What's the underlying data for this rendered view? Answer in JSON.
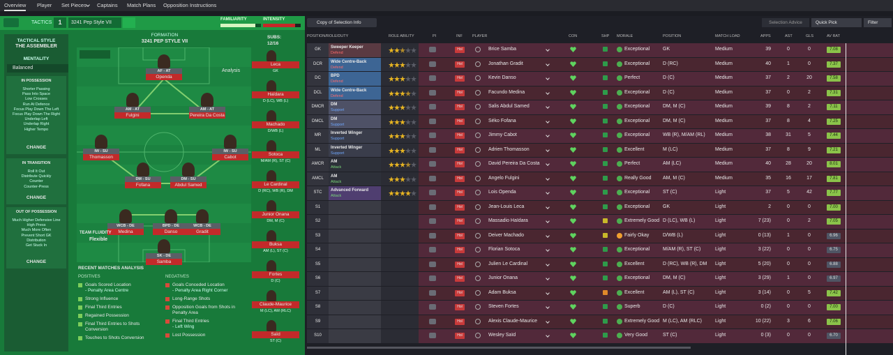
{
  "tabs": [
    "Overview",
    "Player",
    "Set Pieces",
    "Captains",
    "Match Plans",
    "Opposition Instructions"
  ],
  "tactic": {
    "label": "TACTICS",
    "number": "1",
    "name": "3241 Pep Style VII",
    "familiarity": "FAMILIARITY",
    "intensity": "INTENSITY"
  },
  "style": {
    "heading": "TACTICAL STYLE",
    "name": "THE ASSEMBLER",
    "mentality_label": "MENTALITY",
    "mentality": "Balanced"
  },
  "instructions": [
    {
      "title": "IN POSSESSION",
      "items": [
        "Shorter Passing",
        "Pass Into Space",
        "Low Crosses",
        "Run At Defence",
        "Focus Play Down The Left",
        "Focus Play Down The Right",
        "Underlap Left",
        "Underlap Right",
        "Higher Tempo"
      ],
      "change": "CHANGE"
    },
    {
      "title": "IN TRANSITION",
      "items": [
        "Roll It Out",
        "Distribute Quickly",
        "Counter",
        "Counter-Press"
      ],
      "change": "CHANGE"
    },
    {
      "title": "OUT OF POSSESSION",
      "items": [
        "Much Higher Defensive Line",
        "High Press",
        "Much More Often",
        "Prevent Short GK",
        "Distribution",
        "Get Stuck In"
      ],
      "change": "CHANGE"
    }
  ],
  "formation": {
    "label": "FORMATION",
    "name": "3241 PEP STYLE VII",
    "analysis": "Analysis",
    "subs_label": "SUBS:",
    "subs": "12/16",
    "fluidity_label": "TEAM FLUIDITY",
    "fluidity": "Flexible"
  },
  "pitch": [
    {
      "role": "AF - AT",
      "name": "Openda"
    },
    {
      "role": "AM - AT",
      "name": "Fulgini"
    },
    {
      "role": "AM - AT",
      "name": "Pereira Da Costa"
    },
    {
      "role": "IW - SU",
      "name": "Thomasson"
    },
    {
      "role": "IW - SU",
      "name": "Cabot"
    },
    {
      "role": "DM - SU",
      "name": "Fofana"
    },
    {
      "role": "DM - SU",
      "name": "Abdul Samed"
    },
    {
      "role": "WCB - DE",
      "name": "Medina"
    },
    {
      "role": "BPD - DE",
      "name": "Danso"
    },
    {
      "role": "WCB - DE",
      "name": "Gradit"
    },
    {
      "role": "SK - DE",
      "name": "Samba"
    }
  ],
  "subs": [
    {
      "name": "Leca",
      "pos": "GK"
    },
    {
      "name": "Haïdara",
      "pos": "D (LC), WB (L)"
    },
    {
      "name": "Machado",
      "pos": "D/WB (L)"
    },
    {
      "name": "Sotoca",
      "pos": "M/AM (R), ST (C)"
    },
    {
      "name": "Le Cardinal",
      "pos": "D (RC), WB (R), DM"
    },
    {
      "name": "Junior Onana",
      "pos": "DM, M (C)"
    },
    {
      "name": "Buksa",
      "pos": "AM (L), ST (C)"
    },
    {
      "name": "Fortes",
      "pos": "D (C)"
    },
    {
      "name": "Claude-Maurice",
      "pos": "M (LC), AM (RLC)"
    },
    {
      "name": "Saïd",
      "pos": "ST (C)"
    }
  ],
  "analysis": {
    "title": "RECENT MATCHES ANALYSIS",
    "positives_label": "POSITIVES",
    "negatives_label": "NEGATIVES",
    "positives": [
      {
        "text": "Goals Scored Location",
        "detail": "- Penalty Area Centre"
      },
      {
        "text": "Strong Influence"
      },
      {
        "text": "Final Third Entries"
      },
      {
        "text": "Regained Possession"
      },
      {
        "text": "Final Third Entries to Shots Conversion"
      },
      {
        "text": "Touches to Shots Conversion"
      }
    ],
    "negatives": [
      {
        "text": "Goals Conceded Location",
        "detail": "- Penalty Area Right Corner"
      },
      {
        "text": "Long-Range Shots"
      },
      {
        "text": "Opposition Goals from Shots in Penalty Area"
      },
      {
        "text": "Final Third Entries",
        "detail": "- Left Wing"
      },
      {
        "text": "Lost Possession"
      }
    ]
  },
  "toolbar": {
    "view": "Copy of Selection Info",
    "advice": "Selection Advice",
    "quick_pick": "Quick Pick",
    "filter": "Filter"
  },
  "table": {
    "headers": [
      "POSITION/ROLE/DUTY",
      "ROLE ABILITY",
      "PI",
      "INF",
      "PLAYER",
      "CON",
      "SHP",
      "MORALE",
      "POSITION",
      "MATCH LOAD",
      "APPS",
      "AST",
      "GLS",
      "AV RAT"
    ],
    "rows": [
      {
        "pos": "GK",
        "role": "Sweeper Keeper",
        "duty": "Defend",
        "ability": 2.5,
        "inf": "Hol",
        "player": "Brice Samba",
        "morale": "Exceptional",
        "position": "GK",
        "load": "Medium",
        "apps": "39",
        "ast": "0",
        "gls": "0",
        "rating": "7.08"
      },
      {
        "pos": "DCR",
        "role": "Wide Centre-Back",
        "duty": "Defend",
        "ability": 3,
        "inf": "Hol",
        "player": "Jonathan Gradit",
        "morale": "Exceptional",
        "position": "D (RC)",
        "load": "Medium",
        "apps": "40",
        "ast": "1",
        "gls": "0",
        "rating": "7.37"
      },
      {
        "pos": "DC",
        "role": "BPD",
        "duty": "Defend",
        "ability": 3,
        "inf": "Hol",
        "player": "Kevin Danso",
        "morale": "Perfect",
        "position": "D (C)",
        "load": "Medium",
        "apps": "37",
        "ast": "2",
        "gls": "20",
        "rating": "7.58"
      },
      {
        "pos": "DCL",
        "role": "Wide Centre-Back",
        "duty": "Defend",
        "ability": 3.5,
        "inf": "Hol",
        "player": "Facundo Medina",
        "morale": "Exceptional",
        "position": "D (C)",
        "load": "Medium",
        "apps": "37",
        "ast": "0",
        "gls": "2",
        "rating": "7.31"
      },
      {
        "pos": "DMCR",
        "role": "DM",
        "duty": "Support",
        "ability": 3,
        "inf": "Hol",
        "player": "Salis Abdul Samed",
        "morale": "Exceptional",
        "position": "DM, M (C)",
        "load": "Medium",
        "apps": "39",
        "ast": "8",
        "gls": "2",
        "rating": "7.11"
      },
      {
        "pos": "DMCL",
        "role": "DM",
        "duty": "Support",
        "ability": 3,
        "inf": "Hol",
        "player": "Séko Fofana",
        "morale": "Exceptional",
        "position": "DM, M (C)",
        "load": "Medium",
        "apps": "37",
        "ast": "8",
        "gls": "4",
        "rating": "7.25"
      },
      {
        "pos": "MR",
        "role": "Inverted Winger",
        "duty": "Support",
        "ability": 3,
        "inf": "Hol",
        "player": "Jimmy Cabot",
        "morale": "Exceptional",
        "position": "WB (R), M/AM (RL)",
        "load": "Medium",
        "apps": "38",
        "ast": "31",
        "gls": "5",
        "rating": "7.44"
      },
      {
        "pos": "ML",
        "role": "Inverted Winger",
        "duty": "Support",
        "ability": 3,
        "inf": "Hol",
        "player": "Adrien Thomasson",
        "morale": "Excellent",
        "position": "M (LC)",
        "load": "Medium",
        "apps": "37",
        "ast": "8",
        "gls": "9",
        "rating": "7.21"
      },
      {
        "pos": "AMCR",
        "role": "AM",
        "duty": "Attack",
        "ability": 3.5,
        "inf": "Hol",
        "player": "David Pereira Da Costa",
        "morale": "Perfect",
        "position": "AM (LC)",
        "load": "Medium",
        "apps": "40",
        "ast": "28",
        "gls": "20",
        "rating": "8.01"
      },
      {
        "pos": "AMCL",
        "role": "AM",
        "duty": "Attack",
        "ability": 3,
        "inf": "Hol",
        "player": "Angelo Fulgini",
        "morale": "Really Good",
        "position": "AM, M (C)",
        "load": "Medium",
        "apps": "35",
        "ast": "16",
        "gls": "17",
        "rating": "7.81"
      },
      {
        "pos": "STC",
        "role": "Advanced Forward",
        "duty": "Attack",
        "ability": 4,
        "inf": "Hol",
        "player": "Lois Openda",
        "morale": "Exceptional",
        "position": "ST (C)",
        "load": "Light",
        "apps": "37",
        "ast": "5",
        "gls": "42",
        "rating": "7.77"
      },
      {
        "pos": "S1",
        "inf": "Hol",
        "player": "Jean-Louis Leca",
        "morale": "Exceptional",
        "position": "GK",
        "load": "Light",
        "apps": "2",
        "ast": "0",
        "gls": "0",
        "rating": "7.00"
      },
      {
        "pos": "S2",
        "inf": "Hol",
        "player": "Massadio Haïdara",
        "morale": "Extremely Good",
        "position": "D (LC), WB (L)",
        "load": "Light",
        "apps": "7 (23)",
        "ast": "0",
        "gls": "2",
        "rating": "7.05"
      },
      {
        "pos": "S3",
        "inf": "Hol",
        "player": "Deiver Machado",
        "morale": "Fairly Okay",
        "position": "D/WB (L)",
        "load": "Light",
        "apps": "0 (13)",
        "ast": "1",
        "gls": "0",
        "rating": "6.96"
      },
      {
        "pos": "S4",
        "inf": "Hol",
        "player": "Florian Sotoca",
        "morale": "Exceptional",
        "position": "M/AM (R), ST (C)",
        "load": "Light",
        "apps": "3 (22)",
        "ast": "0",
        "gls": "0",
        "rating": "6.75"
      },
      {
        "pos": "S5",
        "inf": "Hol",
        "player": "Julien Le Cardinal",
        "morale": "Excellent",
        "position": "D (RC), WB (R), DM",
        "load": "Light",
        "apps": "5 (20)",
        "ast": "0",
        "gls": "0",
        "rating": "6.88"
      },
      {
        "pos": "S6",
        "inf": "Hol",
        "player": "Junior Onana",
        "morale": "Exceptional",
        "position": "DM, M (C)",
        "load": "Light",
        "apps": "3 (29)",
        "ast": "1",
        "gls": "0",
        "rating": "6.97"
      },
      {
        "pos": "S7",
        "inf": "Hol",
        "player": "Adam Buksa",
        "morale": "Excellent",
        "position": "AM (L), ST (C)",
        "load": "Light",
        "apps": "3 (14)",
        "ast": "0",
        "gls": "5",
        "rating": "7.42"
      },
      {
        "pos": "S8",
        "inf": "Hol",
        "player": "Steven Fortes",
        "morale": "Superb",
        "position": "D (C)",
        "load": "Light",
        "apps": "0 (2)",
        "ast": "0",
        "gls": "0",
        "rating": "7.00"
      },
      {
        "pos": "S9",
        "inf": "Hol",
        "player": "Alexis Claude-Maurice",
        "morale": "Extremely Good",
        "position": "M (LC), AM (RLC)",
        "load": "Light",
        "apps": "10 (22)",
        "ast": "3",
        "gls": "6",
        "rating": "7.06"
      },
      {
        "pos": "S10",
        "inf": "Hol",
        "player": "Wesley Saïd",
        "morale": "Very Good",
        "position": "ST (C)",
        "load": "Light",
        "apps": "0 (3)",
        "ast": "0",
        "gls": "0",
        "rating": "6.70"
      }
    ]
  }
}
